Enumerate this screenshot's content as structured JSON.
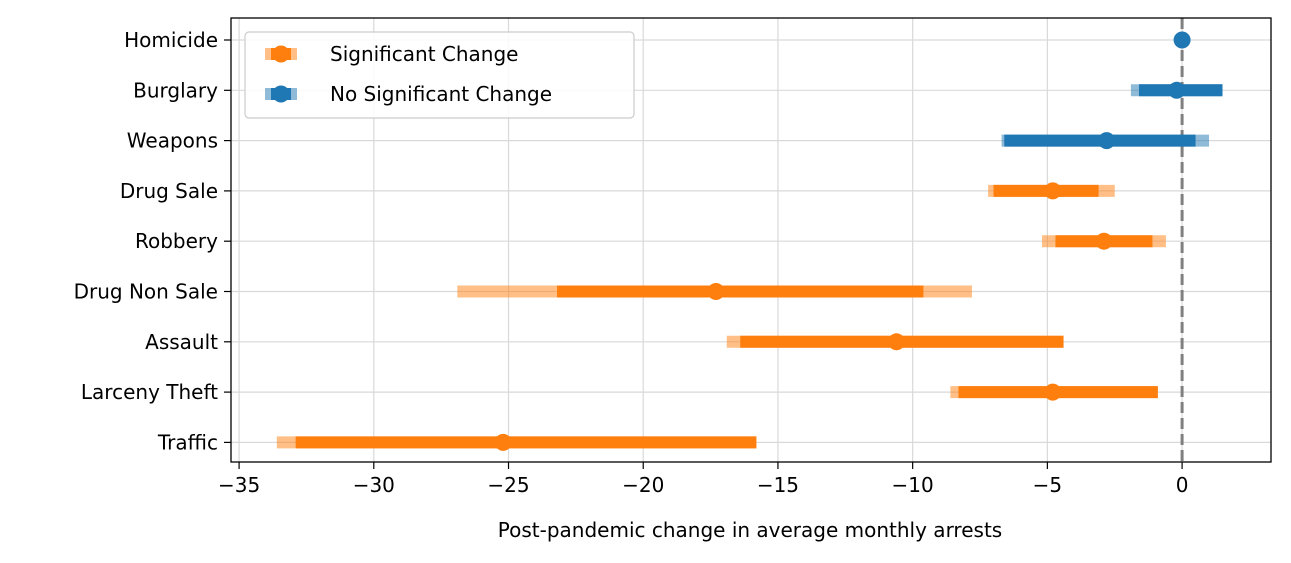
{
  "chart_data": {
    "type": "forest",
    "xlabel": "Post-pandemic change in average monthly arrests",
    "ylabel": "",
    "xlim": [
      -35.3,
      3.3
    ],
    "xticks": [
      -35,
      -30,
      -25,
      -20,
      -15,
      -10,
      -5,
      0
    ],
    "xtick_labels": [
      "−35",
      "−30",
      "−25",
      "−20",
      "−15",
      "−10",
      "−5",
      "0"
    ],
    "grid": true,
    "reference_line": 0,
    "legend_position": "upper-left",
    "legend": [
      {
        "label": "Significant Change",
        "color": "#ff7f0e"
      },
      {
        "label": "No Significant Change",
        "color": "#1f77b4"
      }
    ],
    "colors": {
      "significant": "#ff7f0e",
      "not_significant": "#1f77b4",
      "reference": "#808080"
    },
    "categories": [
      "Homicide",
      "Burglary",
      "Weapons",
      "Drug Sale",
      "Robbery",
      "Drug Non Sale",
      "Assault",
      "Larceny Theft",
      "Traffic"
    ],
    "rows": [
      {
        "name": "Homicide",
        "estimate": 0.0,
        "inner": [
          0.0,
          0.0
        ],
        "outer": [
          0.0,
          0.0
        ],
        "significant": false
      },
      {
        "name": "Burglary",
        "estimate": -0.2,
        "inner": [
          -1.6,
          1.5
        ],
        "outer": [
          -1.9,
          1.5
        ],
        "significant": false
      },
      {
        "name": "Weapons",
        "estimate": -2.8,
        "inner": [
          -6.6,
          0.5
        ],
        "outer": [
          -6.7,
          1.0
        ],
        "significant": false
      },
      {
        "name": "Drug Sale",
        "estimate": -4.8,
        "inner": [
          -7.0,
          -3.1
        ],
        "outer": [
          -7.2,
          -2.5
        ],
        "significant": true
      },
      {
        "name": "Robbery",
        "estimate": -2.9,
        "inner": [
          -4.7,
          -1.1
        ],
        "outer": [
          -5.2,
          -0.6
        ],
        "significant": true
      },
      {
        "name": "Drug Non Sale",
        "estimate": -17.3,
        "inner": [
          -23.2,
          -9.6
        ],
        "outer": [
          -26.9,
          -7.8
        ],
        "significant": true
      },
      {
        "name": "Assault",
        "estimate": -10.6,
        "inner": [
          -16.4,
          -4.4
        ],
        "outer": [
          -16.9,
          -4.4
        ],
        "significant": true
      },
      {
        "name": "Larceny Theft",
        "estimate": -4.8,
        "inner": [
          -8.3,
          -0.9
        ],
        "outer": [
          -8.6,
          -0.9
        ],
        "significant": true
      },
      {
        "name": "Traffic",
        "estimate": -25.2,
        "inner": [
          -32.9,
          -15.8
        ],
        "outer": [
          -33.6,
          -15.8
        ],
        "significant": true
      }
    ]
  }
}
